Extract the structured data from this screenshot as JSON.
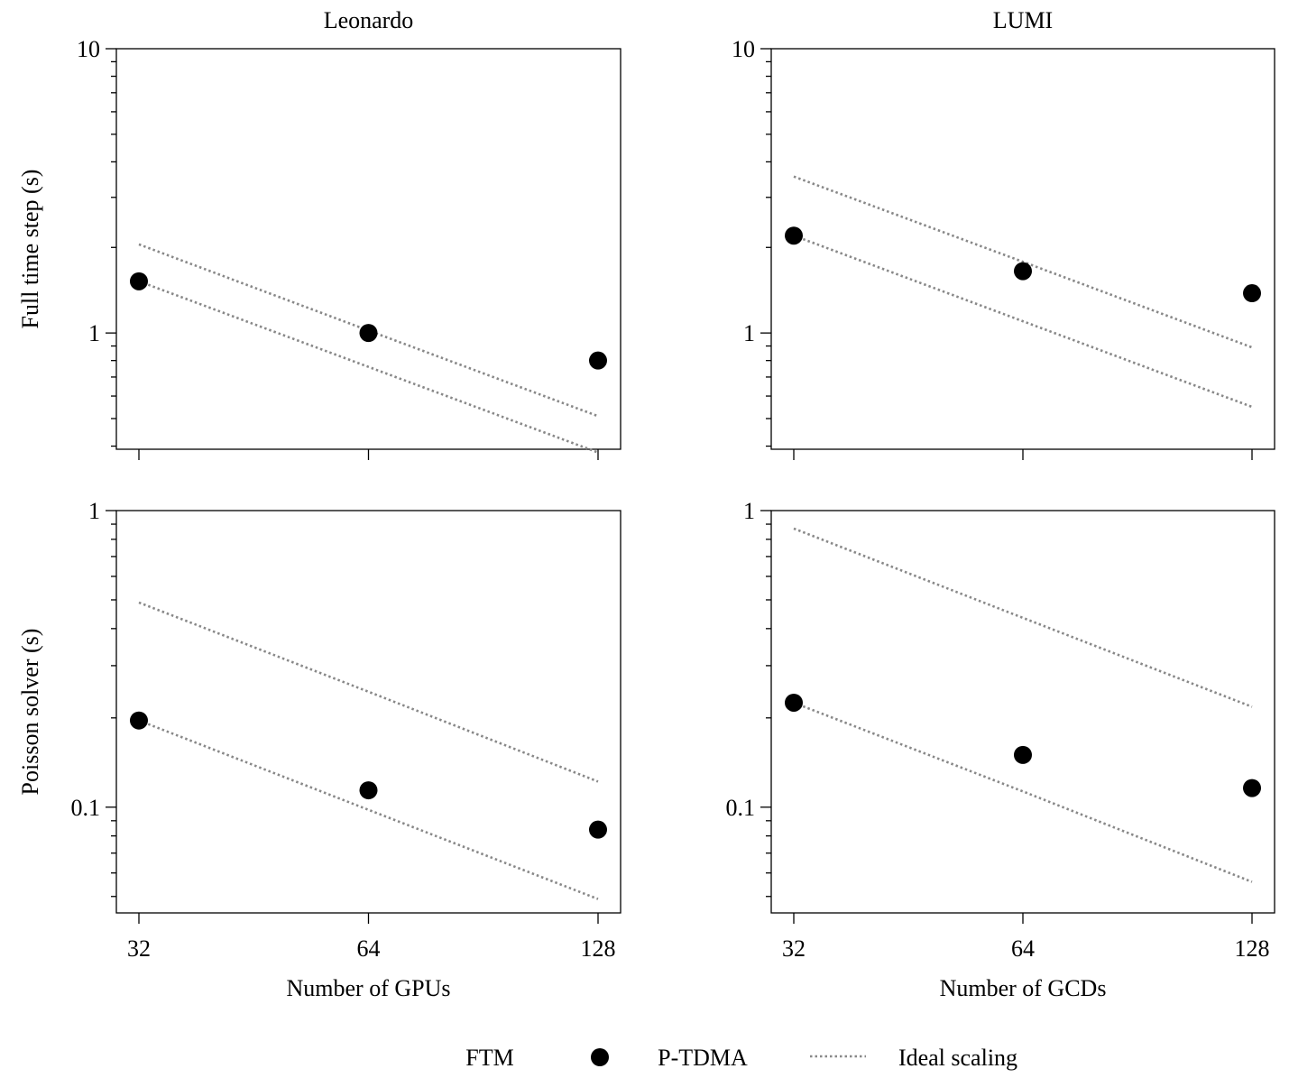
{
  "chart_data": [
    {
      "type": "scatter",
      "panel": "leonardo-full",
      "title": "Leonardo",
      "xlabel": "",
      "ylabel": "Full time step (s)",
      "x": [
        32,
        64,
        128
      ],
      "x_tick_labels": [],
      "y_scale": "log",
      "ylim": [
        0.39,
        10
      ],
      "y_tick_labels": [
        "1",
        "10"
      ],
      "series": [
        {
          "name": "P-TDMA",
          "values": [
            1.52,
            1.0,
            0.8
          ]
        },
        {
          "name": "Ideal scaling (FTM)",
          "values": [
            2.05,
            1.02,
            0.51
          ]
        },
        {
          "name": "Ideal scaling (P-TDMA)",
          "values": [
            1.52,
            0.76,
            0.38
          ]
        }
      ]
    },
    {
      "type": "scatter",
      "panel": "lumi-full",
      "title": "LUMI",
      "xlabel": "",
      "ylabel": "",
      "x": [
        32,
        64,
        128
      ],
      "x_tick_labels": [],
      "y_scale": "log",
      "ylim": [
        0.39,
        10
      ],
      "y_tick_labels": [
        "1",
        "10"
      ],
      "series": [
        {
          "name": "P-TDMA",
          "values": [
            2.2,
            1.65,
            1.38
          ]
        },
        {
          "name": "Ideal scaling (FTM)",
          "values": [
            3.55,
            1.78,
            0.89
          ]
        },
        {
          "name": "Ideal scaling (P-TDMA)",
          "values": [
            2.2,
            1.1,
            0.55
          ]
        }
      ]
    },
    {
      "type": "scatter",
      "panel": "leonardo-poisson",
      "title": "",
      "xlabel": "Number of GPUs",
      "ylabel": "Poisson solver (s)",
      "x": [
        32,
        64,
        128
      ],
      "x_tick_labels": [
        "32",
        "64",
        "128"
      ],
      "y_scale": "log",
      "ylim": [
        0.044,
        1
      ],
      "y_tick_labels": [
        "0.1",
        "1"
      ],
      "series": [
        {
          "name": "P-TDMA",
          "values": [
            0.196,
            0.114,
            0.084
          ]
        },
        {
          "name": "Ideal scaling (FTM)",
          "values": [
            0.49,
            0.245,
            0.122
          ]
        },
        {
          "name": "Ideal scaling (P-TDMA)",
          "values": [
            0.196,
            0.098,
            0.049
          ]
        }
      ]
    },
    {
      "type": "scatter",
      "panel": "lumi-poisson",
      "title": "",
      "xlabel": "Number of GCDs",
      "ylabel": "",
      "x": [
        32,
        64,
        128
      ],
      "x_tick_labels": [
        "32",
        "64",
        "128"
      ],
      "y_scale": "log",
      "ylim": [
        0.044,
        1
      ],
      "y_tick_labels": [
        "0.1",
        "1"
      ],
      "series": [
        {
          "name": "P-TDMA",
          "values": [
            0.225,
            0.15,
            0.116
          ]
        },
        {
          "name": "Ideal scaling (FTM)",
          "values": [
            0.87,
            0.435,
            0.218
          ]
        },
        {
          "name": "Ideal scaling (P-TDMA)",
          "values": [
            0.225,
            0.113,
            0.056
          ]
        }
      ]
    }
  ],
  "legend": {
    "entries": [
      {
        "label": "FTM",
        "marker": "none"
      },
      {
        "label": "P-TDMA",
        "marker": "filled-circle"
      },
      {
        "label": "Ideal scaling",
        "marker": "dotted-line"
      }
    ]
  },
  "colors": {
    "marker": "#000000",
    "ideal_line": "#888888",
    "axes": "#000000"
  }
}
